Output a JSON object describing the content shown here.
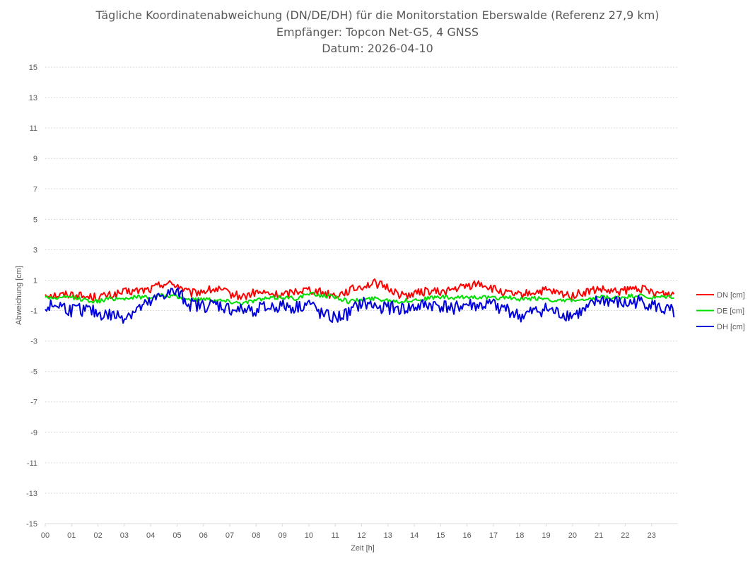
{
  "chart_data": {
    "type": "line",
    "title": "Tägliche Koordinatenabweichung (DN/DE/DH) für die Monitorstation Eberswalde (Referenz 27,9 km)",
    "subtitle": "Empfänger: Topcon Net-G5, 4 GNSS",
    "date_line": "Datum: 2026-04-10",
    "xlabel": "Zeit [h]",
    "ylabel": "Abweichung [cm]",
    "xlim": [
      0,
      24
    ],
    "ylim": [
      -15,
      15
    ],
    "grid": true,
    "legend_position": "right",
    "x_ticks": [
      "00",
      "01",
      "02",
      "03",
      "04",
      "05",
      "06",
      "07",
      "08",
      "09",
      "10",
      "11",
      "12",
      "13",
      "14",
      "15",
      "16",
      "17",
      "18",
      "19",
      "20",
      "21",
      "22",
      "23"
    ],
    "y_ticks": [
      15,
      13,
      11,
      9,
      7,
      5,
      3,
      1,
      -1,
      -3,
      -5,
      -7,
      -9,
      -11,
      -13,
      -15
    ],
    "x": [
      0,
      0.5,
      1,
      1.5,
      2,
      2.5,
      3,
      3.5,
      4,
      4.5,
      5,
      5.5,
      6,
      6.5,
      7,
      7.5,
      8,
      8.5,
      9,
      9.5,
      10,
      10.5,
      11,
      11.5,
      12,
      12.5,
      13,
      13.5,
      14,
      14.5,
      15,
      15.5,
      16,
      16.5,
      17,
      17.5,
      18,
      18.5,
      19,
      19.5,
      20,
      20.5,
      21,
      21.5,
      22,
      22.5,
      23,
      23.5
    ],
    "series": [
      {
        "name": "DN [cm]",
        "color": "#ff0000",
        "values": [
          0.1,
          0.0,
          0.1,
          -0.1,
          -0.1,
          0.0,
          0.2,
          0.3,
          0.4,
          0.8,
          0.7,
          0.1,
          0.3,
          0.4,
          0.1,
          -0.1,
          0.2,
          0.1,
          0.0,
          0.3,
          0.4,
          0.2,
          0.0,
          0.3,
          0.6,
          0.8,
          0.5,
          0.0,
          0.1,
          0.3,
          0.2,
          0.4,
          0.6,
          0.8,
          0.4,
          0.1,
          0.0,
          0.2,
          0.3,
          0.1,
          0.0,
          0.2,
          0.4,
          0.2,
          0.3,
          0.5,
          0.2,
          0.1
        ]
      },
      {
        "name": "DE [cm]",
        "color": "#00e000",
        "values": [
          -0.1,
          -0.2,
          -0.1,
          -0.3,
          -0.4,
          -0.2,
          -0.2,
          -0.1,
          -0.1,
          0.0,
          -0.1,
          -0.3,
          -0.2,
          -0.3,
          -0.4,
          -0.5,
          -0.3,
          -0.2,
          -0.1,
          -0.2,
          0.1,
          0.0,
          -0.1,
          -0.4,
          -0.3,
          -0.2,
          -0.3,
          -0.4,
          -0.3,
          -0.2,
          -0.1,
          -0.2,
          -0.1,
          -0.1,
          -0.2,
          -0.1,
          -0.3,
          -0.2,
          -0.2,
          -0.4,
          -0.3,
          -0.4,
          -0.1,
          -0.2,
          -0.1,
          0.0,
          -0.2,
          -0.1
        ]
      },
      {
        "name": "DH [cm]",
        "color": "#0000dd",
        "values": [
          -0.8,
          -0.6,
          -1.0,
          -0.9,
          -1.2,
          -1.3,
          -1.4,
          -0.9,
          -0.5,
          0.1,
          0.2,
          -0.6,
          -0.7,
          -0.6,
          -0.9,
          -1.0,
          -0.9,
          -0.8,
          -0.7,
          -0.8,
          -0.5,
          -1.3,
          -1.5,
          -1.2,
          -0.5,
          -0.7,
          -0.8,
          -0.9,
          -0.8,
          -0.6,
          -0.7,
          -0.8,
          -0.6,
          -0.7,
          -0.6,
          -0.9,
          -1.4,
          -1.1,
          -0.9,
          -1.2,
          -1.3,
          -1.0,
          -0.3,
          -0.4,
          -0.6,
          -0.4,
          -0.6,
          -1.0
        ]
      }
    ]
  }
}
